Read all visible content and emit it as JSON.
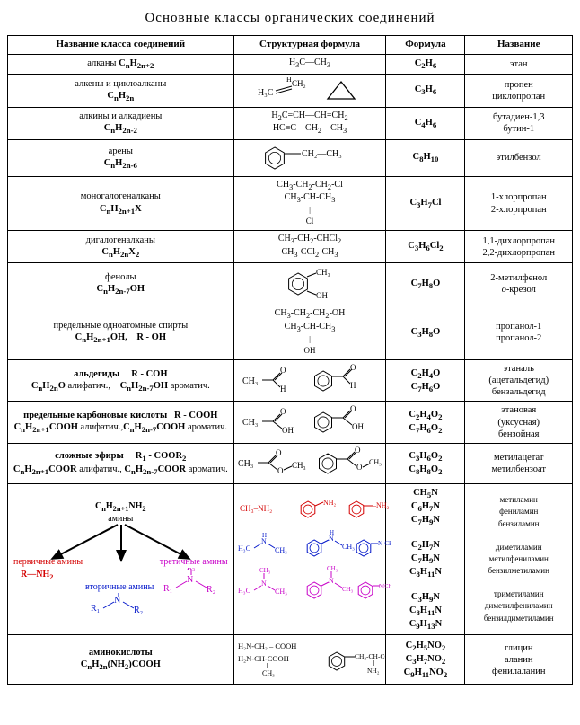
{
  "title": "Основные классы органических соединений",
  "headers": {
    "c1": "Название класса соединений",
    "c2": "Структурная формула",
    "c3": "Формула",
    "c4": "Название"
  },
  "rows": [
    {
      "class_html": "алканы <b>C<sub>n</sub>H<sub>2n+2</sub></b>",
      "struct_html": "H<sub>3</sub>C—CH<sub>3</sub>",
      "formula_html": "<b>C<sub>2</sub>H<sub>6</sub></b>",
      "name_html": "этан"
    },
    {
      "class_html": "алкены и циклоалканы<br><b>C<sub>n</sub>H<sub>2n</sub></b>",
      "struct_svg": "alkene_cyclo",
      "formula_html": "<b>C<sub>3</sub>H<sub>6</sub></b>",
      "name_html": "пропен<br>циклопропан"
    },
    {
      "class_html": "алкины и алкадиены<br><b>C<sub>n</sub>H<sub>2n-2</sub></b>",
      "struct_html": "H<sub>2</sub>C=CH—CH=CH<sub>2</sub><br>HC≡C—CH<sub>2</sub>—CH<sub>3</sub>",
      "formula_html": "<b>C<sub>4</sub>H<sub>6</sub></b>",
      "name_html": "бутадиен-1,3<br>бутин-1"
    },
    {
      "class_html": "арены<br><b>C<sub>n</sub>H<sub>2n-6</sub></b>",
      "struct_svg": "arene",
      "formula_html": "<b>C<sub>8</sub>H<sub>10</sub></b>",
      "name_html": "этилбензол"
    },
    {
      "class_html": "моногалогеналканы<br><b>C<sub>n</sub>H<sub>2n+1</sub>X</b>",
      "struct_html": "CH<sub>3</sub>-CH<sub>2</sub>-CH<sub>2</sub>-Cl<br>CH<sub>3</sub>-CH-CH<sub>3</sub><br><span style='font-size:8px;'>|</span><br><span style='font-size:9px;'>Cl</span>",
      "formula_html": "<b>C<sub>3</sub>H<sub>7</sub>Cl</b>",
      "name_html": "1-хлорпропан<br>2-хлорпропан"
    },
    {
      "class_html": "дигалогеналканы<br><b>C<sub>n</sub>H<sub>2n</sub>X<sub>2</sub></b>",
      "struct_html": "CH<sub>3</sub>-CH<sub>2</sub>-CHCl<sub>2</sub><br>CH<sub>3</sub>-CCl<sub>2</sub>-CH<sub>3</sub>",
      "formula_html": "<b>C<sub>3</sub>H<sub>6</sub>Cl<sub>2</sub></b>",
      "name_html": "1,1-дихлорпропан<br>2,2-дихлорпропан"
    },
    {
      "class_html": "фенолы<br><b>C<sub>n</sub>H<sub>2n-7</sub>OH</b>",
      "struct_svg": "phenol",
      "formula_html": "<b>C<sub>7</sub>H<sub>8</sub>O</b>",
      "name_html": "2-метилфенол<br><i>о</i>-крезол"
    },
    {
      "class_html": "предельные одноатомные спирты<br><b>C<sub>n</sub>H<sub>2n+1</sub>OH, &nbsp;&nbsp; R - OH</b>",
      "struct_html": "CH<sub>3</sub>-CH<sub>2</sub>-CH<sub>2</sub>-OH<br>CH<sub>3</sub>-CH-CH<sub>3</sub><br><span style='font-size:8px;'>|</span><br><span style='font-size:9px;'>OH</span>",
      "formula_html": "<b>C<sub>3</sub>H<sub>8</sub>O</b>",
      "name_html": "пропанол-1<br>пропанол-2"
    },
    {
      "class_html": "<b>альдегиды &nbsp;&nbsp;&nbsp; R - COH</b><br><b>C<sub>n</sub>H<sub>2n</sub>O</b> алифатич., &nbsp;&nbsp; <b>C<sub>n</sub>H<sub>2n-7</sub>OH</b> ароматич.",
      "struct_svg": "aldehyde",
      "formula_html": "<b>C<sub>2</sub>H<sub>4</sub>O<br>C<sub>7</sub>H<sub>6</sub>O</b>",
      "name_html": "этаналь<br>(ацетальдегид)<br>бензальдегид"
    },
    {
      "class_html": "<b>предельные карбоновые кислоты &nbsp; R - COOH</b><br><b>C<sub>n</sub>H<sub>2n+1</sub>COOH</b> алифатич.,<b>C<sub>n</sub>H<sub>2n-7</sub>COOH</b> ароматич.",
      "struct_svg": "acid",
      "formula_html": "<b>C<sub>2</sub>H<sub>4</sub>O<sub>2</sub><br>C<sub>7</sub>H<sub>6</sub>O<sub>2</sub></b>",
      "name_html": "этановая<br>(уксусная)<br>бензойная"
    },
    {
      "class_html": "<b>сложные эфиры &nbsp;&nbsp;&nbsp; R<sub>1</sub> - COOR<sub>2</sub></b><br><b>C<sub>n</sub>H<sub>2n+1</sub>COOR</b> алифатич., <b>C<sub>n</sub>H<sub>2n-7</sub>COOR</b> ароматич.",
      "struct_svg": "ester",
      "formula_html": "<b>C<sub>3</sub>H<sub>6</sub>O<sub>2</sub><br>C<sub>8</sub>H<sub>8</sub>O<sub>2</sub></b>",
      "name_html": "метилацетат<br>метилбензоат"
    },
    {
      "class_html": "AMINE_DIAGRAM",
      "struct_svg": "amines",
      "formula_html": "<b>CH<sub>5</sub>N<br>C<sub>6</sub>H<sub>7</sub>N<br>C<sub>7</sub>H<sub>9</sub>N</b><br><br><b>C<sub>2</sub>H<sub>7</sub>N<br>C<sub>7</sub>H<sub>9</sub>N<br>C<sub>8</sub>H<sub>11</sub>N</b><br><br><b>C<sub>3</sub>H<sub>9</sub>N<br>C<sub>8</sub>H<sub>11</sub>N<br>C<sub>9</sub>H<sub>13</sub>N</b>",
      "name_html": "<span style='font-size:9px;'>метиламин<br>фениламин<br>бензиламин<br><br>диметиламин<br>метилфениламин<br>бензилметиламин<br><br>триметиламин<br>диметилфениламин<br>бензилдиметиламин</span>"
    },
    {
      "class_html": "<b>аминокислоты</b><br><b>C<sub>n</sub>H<sub>2n</sub>(NH<sub>2</sub>)COOH</b>",
      "struct_svg": "amino_acid",
      "formula_html": "<b>C<sub>2</sub>H<sub>5</sub>NO<sub>2</sub><br>C<sub>3</sub>H<sub>7</sub>NO<sub>2</sub><br>C<sub>9</sub>H<sub>11</sub>NO<sub>2</sub></b>",
      "name_html": "глицин<br>аланин<br>фенилаланин"
    }
  ],
  "amine_diagram": {
    "top": "C<sub>n</sub>H<sub>2n+1</sub>NH<sub>2</sub>",
    "label": "амины",
    "primary_label": "первичные амины",
    "primary_formula": "R—NH<sub>2</sub>",
    "secondary_label": "вторичные амины",
    "tertiary_label": "третичные амины",
    "colors": {
      "primary": "#d40000",
      "secondary": "#0015c9",
      "tertiary": "#c800c8"
    }
  }
}
